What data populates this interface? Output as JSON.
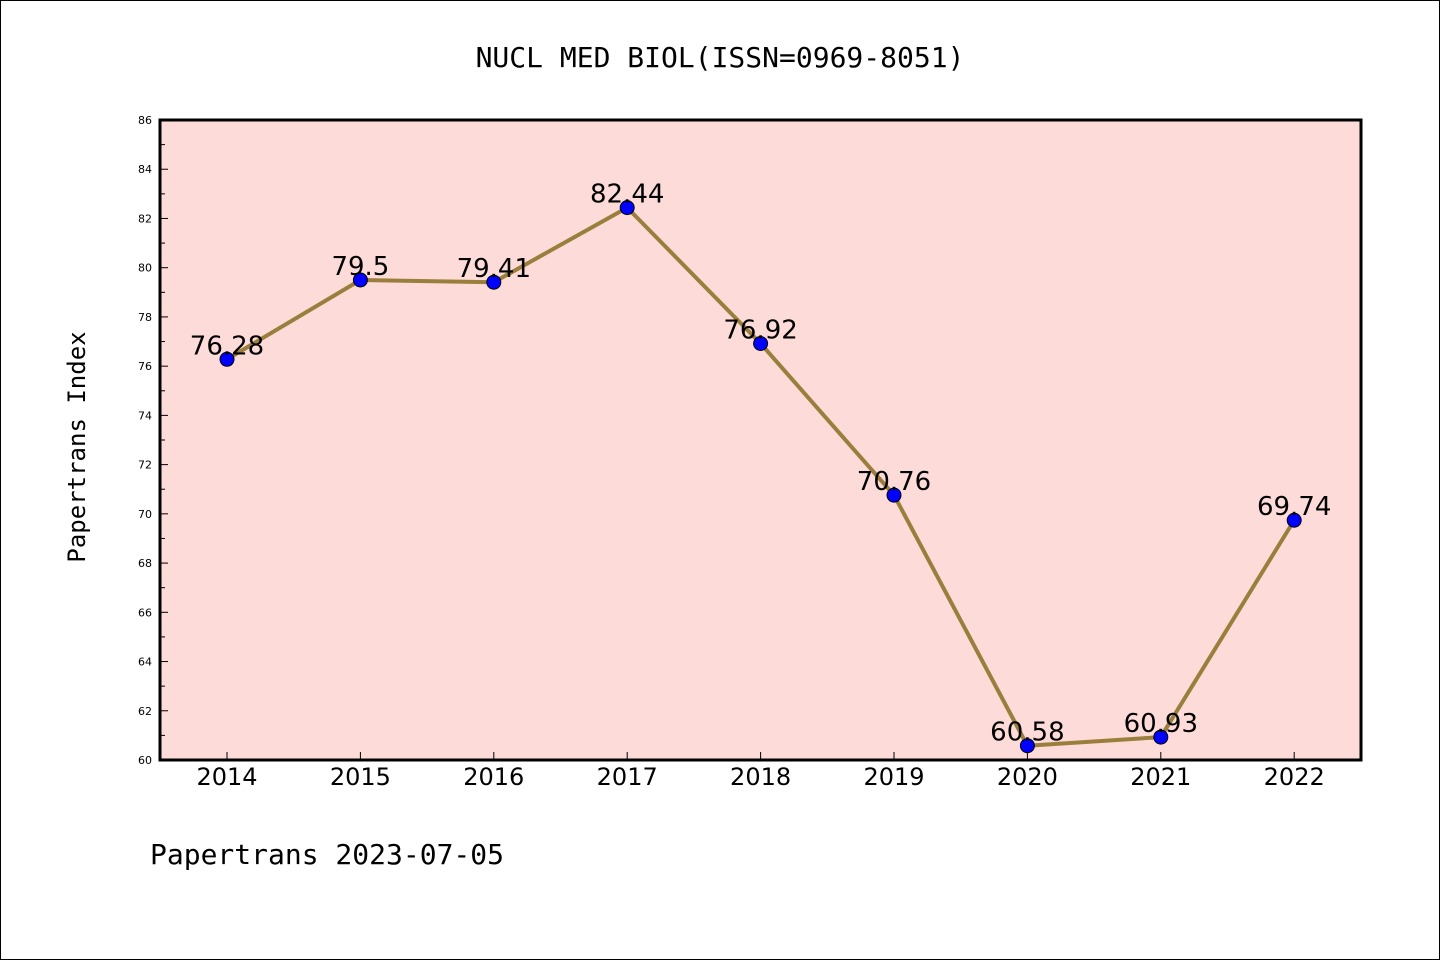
{
  "chart_data": {
    "type": "line",
    "title": "NUCL MED BIOL(ISSN=0969-8051)",
    "xlabel": "",
    "ylabel": "Papertrans Index",
    "categories": [
      "2014",
      "2015",
      "2016",
      "2017",
      "2018",
      "2019",
      "2020",
      "2021",
      "2022"
    ],
    "series": [
      {
        "values": [
          76.28,
          79.5,
          79.41,
          82.44,
          76.92,
          70.76,
          60.58,
          60.93,
          69.74
        ],
        "labels": [
          "76.28",
          "79.5",
          "79.41",
          "82.44",
          "76.92",
          "70.76",
          "60.58",
          "60.93",
          "69.74"
        ]
      }
    ],
    "ylim": [
      60,
      86
    ],
    "yticks": [
      "60",
      "62",
      "64",
      "66",
      "68",
      "70",
      "72",
      "74",
      "76",
      "78",
      "80",
      "82",
      "84",
      "86"
    ],
    "grid": false,
    "colors": {
      "line": "#9a7f3c",
      "marker": "#0000ff",
      "plot_background": "#fddbd8"
    }
  },
  "footer": {
    "text": "Papertrans 2023-07-05"
  }
}
